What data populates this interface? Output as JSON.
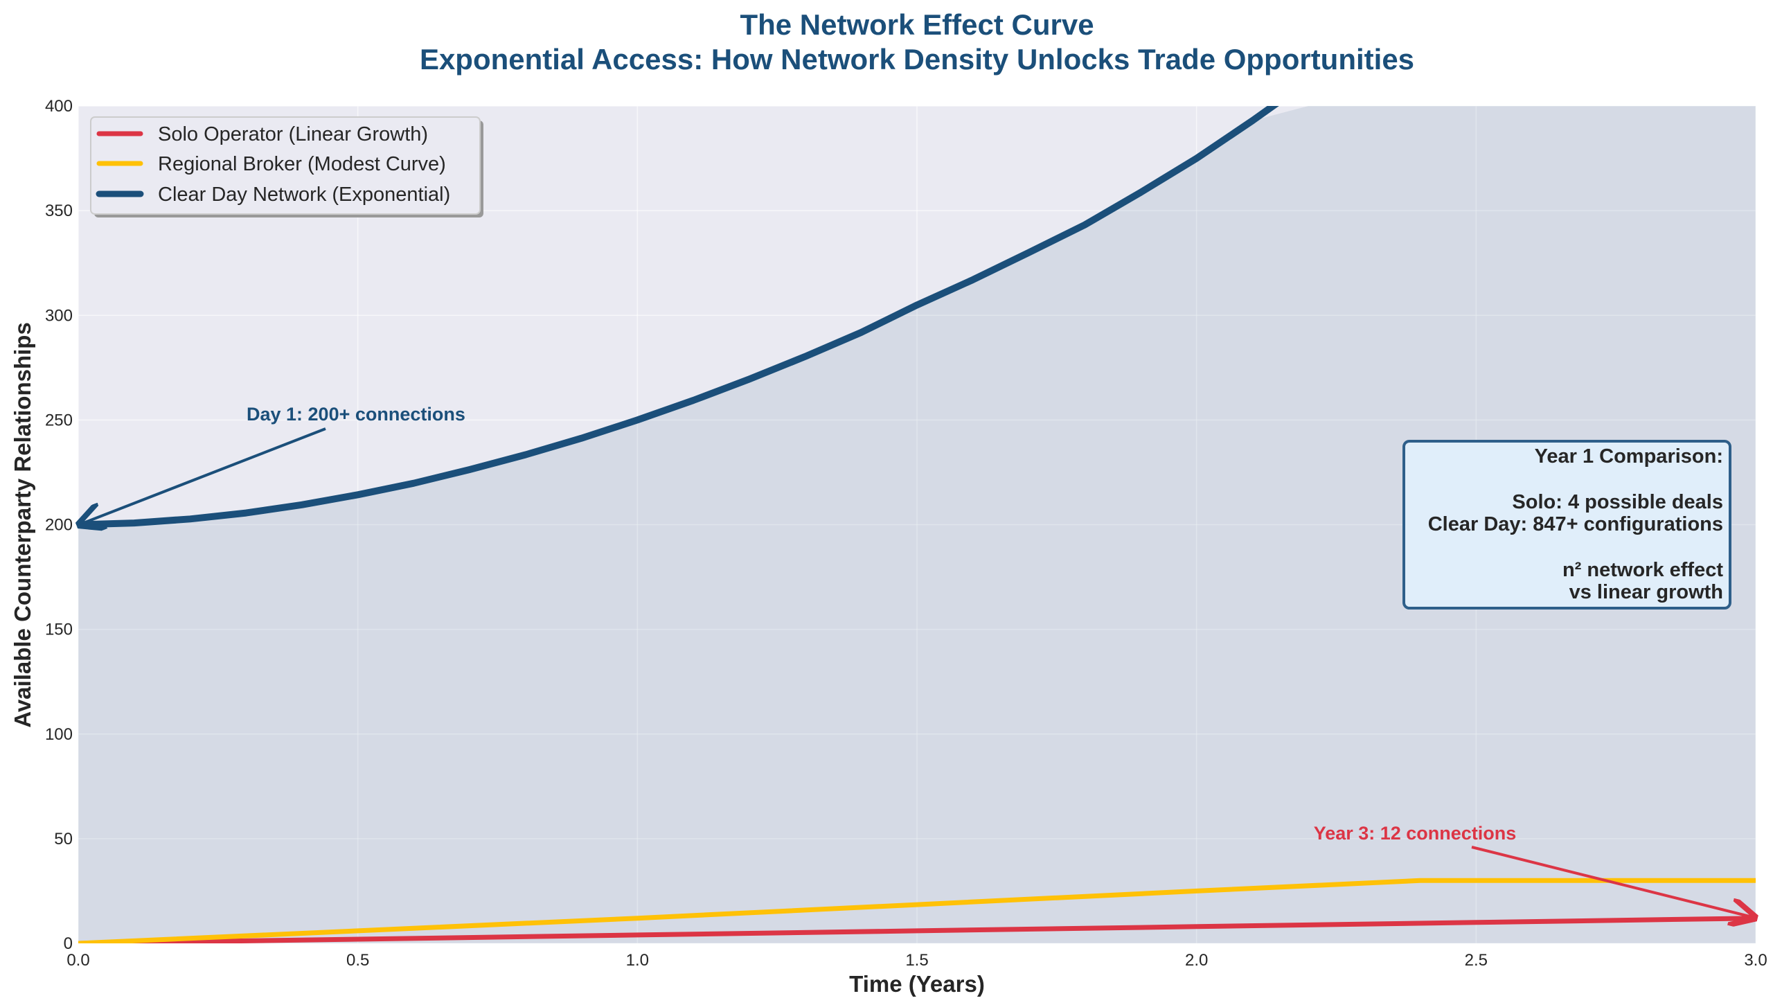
{
  "chart_data": {
    "type": "line",
    "title": "The Network Effect Curve",
    "subtitle": "Exponential Access: How Network Density Unlocks Trade Opportunities",
    "xlabel": "Time (Years)",
    "ylabel": "Available Counterparty Relationships",
    "xlim": [
      0,
      3.0
    ],
    "ylim": [
      0,
      400
    ],
    "xticks": [
      "0.0",
      "0.5",
      "1.0",
      "1.5",
      "2.0",
      "2.5",
      "3.0"
    ],
    "yticks": [
      "0",
      "50",
      "100",
      "150",
      "200",
      "250",
      "300",
      "350",
      "400"
    ],
    "grid": true,
    "legend_placement": "upper-left",
    "series": [
      {
        "name": "Solo Operator (Linear Growth)",
        "color": "#dc3545",
        "x": [
          0,
          0.5,
          1.0,
          1.5,
          2.0,
          2.5,
          3.0
        ],
        "y": [
          0,
          2,
          4,
          6,
          8,
          10,
          12
        ]
      },
      {
        "name": "Regional Broker (Modest Curve)",
        "color": "#ffc107",
        "x": [
          0,
          0.5,
          1.0,
          1.5,
          2.0,
          2.4,
          2.7,
          3.0
        ],
        "y": [
          0,
          6,
          12,
          18.5,
          25,
          30,
          30,
          30
        ]
      },
      {
        "name": "Clear Day Network (Exponential)",
        "color": "#1b4f7a",
        "x": [
          0,
          0.1,
          0.2,
          0.3,
          0.4,
          0.5,
          0.6,
          0.7,
          0.8,
          0.9,
          1.0,
          1.1,
          1.2,
          1.3,
          1.4,
          1.5,
          1.6,
          1.7,
          1.8,
          1.9,
          2.0,
          2.1,
          2.2,
          2.3
        ],
        "y": [
          200,
          200.8,
          202.7,
          205.6,
          209.5,
          214.3,
          219.8,
          226.3,
          233.4,
          241.3,
          250,
          259.4,
          269.5,
          280.3,
          291.8,
          304.9,
          317.0,
          330.0,
          343.2,
          358.7,
          375,
          393.0,
          412.0,
          431.0
        ]
      }
    ],
    "fill_under": "Clear Day Network (Exponential)",
    "annotations": [
      {
        "text": "Day 1: 200+ connections",
        "color": "#1b4f7a",
        "target": [
          0,
          200
        ],
        "text_at": [
          0.3,
          250
        ]
      },
      {
        "text": "Year 3: 12 connections",
        "color": "#dc3545",
        "target": [
          3.0,
          12
        ],
        "text_at": [
          2.2,
          50
        ]
      }
    ],
    "info_box": {
      "lines": [
        "Year 1 Comparison:",
        "",
        "Solo: 4 possible deals",
        "Clear Day: 847+ configurations",
        "",
        "n² network effect",
        "vs linear growth"
      ],
      "border_color": "#2e5f8a",
      "background": "#e0eefa"
    }
  }
}
